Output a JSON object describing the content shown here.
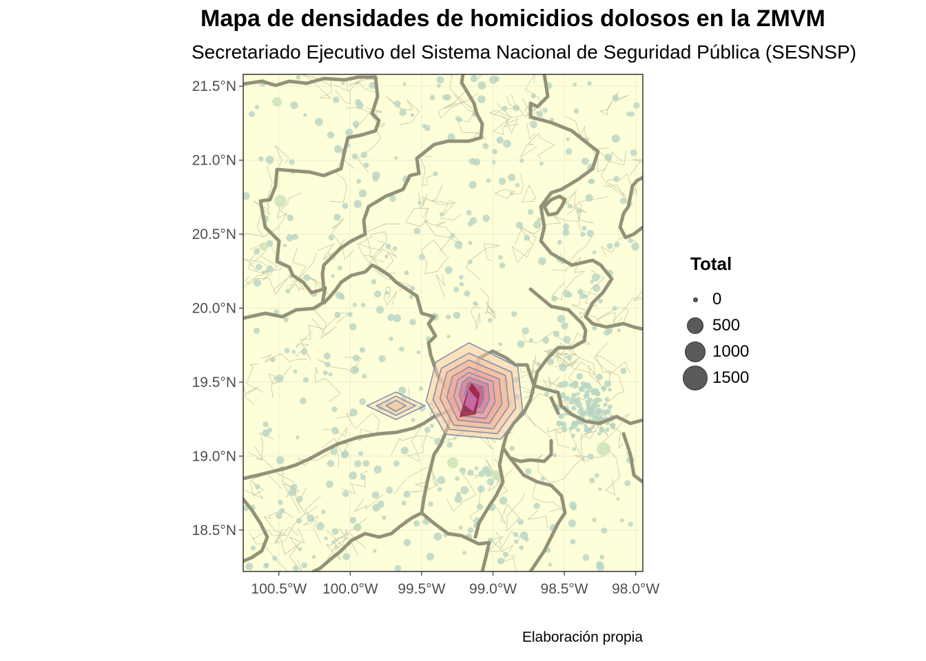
{
  "title": "Mapa de densidades de homicidios dolosos en la ZMVM",
  "subtitle": "Secretariado Ejecutivo del Sistema Nacional de Seguridad Pública (SESNSP)",
  "caption": "Elaboración propia",
  "colors": {
    "panel_bg": "#fefed8",
    "grid": "#eeeed6",
    "state_border": "#93917a",
    "municipal_border": "#c8c6a8",
    "points": "#b7d5c4",
    "density_low": "#f7c9a5",
    "density_mid": "#e8a0a8",
    "density_high": "#c05a8a",
    "density_core": "#8b1a3a",
    "contour_line": "#8090b0",
    "legend_dot": "#5a5a5a"
  },
  "chart_data": {
    "type": "map",
    "xlim": [
      -100.75,
      -97.95
    ],
    "ylim": [
      18.22,
      21.58
    ],
    "x_ticks": [
      {
        "value": -100.5,
        "label": "100.5°W"
      },
      {
        "value": -100.0,
        "label": "100.0°W"
      },
      {
        "value": -99.5,
        "label": "99.5°W"
      },
      {
        "value": -99.0,
        "label": "99.0°W"
      },
      {
        "value": -98.5,
        "label": "98.5°W"
      },
      {
        "value": -98.0,
        "label": "98.0°W"
      }
    ],
    "y_ticks": [
      {
        "value": 21.5,
        "label": "21.5°N"
      },
      {
        "value": 21.0,
        "label": "21.0°N"
      },
      {
        "value": 20.5,
        "label": "20.5°N"
      },
      {
        "value": 20.0,
        "label": "20.0°N"
      },
      {
        "value": 19.5,
        "label": "19.5°N"
      },
      {
        "value": 19.0,
        "label": "19.0°N"
      },
      {
        "value": 18.5,
        "label": "18.5°N"
      }
    ],
    "legend": {
      "title": "Total",
      "position": "right",
      "items": [
        {
          "label": "0",
          "value": 0
        },
        {
          "label": "500",
          "value": 500
        },
        {
          "label": "1000",
          "value": 1000
        },
        {
          "label": "1500",
          "value": 1500
        }
      ]
    },
    "density_peaks": [
      {
        "lon": -99.13,
        "lat": 19.44,
        "level": "high"
      },
      {
        "lon": -99.68,
        "lat": 19.34,
        "level": "low"
      }
    ],
    "grid": true
  }
}
